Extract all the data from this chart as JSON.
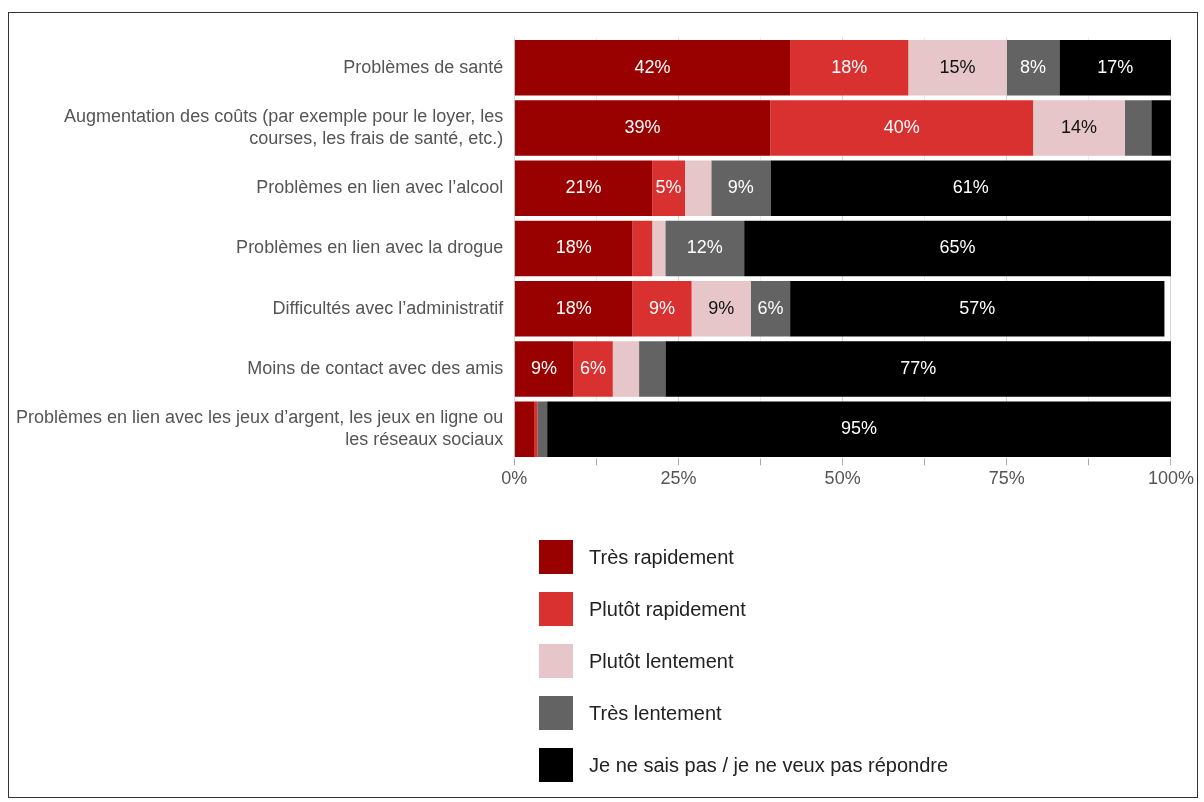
{
  "chart_data": {
    "type": "bar",
    "orientation": "horizontal",
    "stacked": true,
    "categories": [
      "Problèmes de santé",
      "Augmentation des coûts (par exemple pour le loyer, les courses, les frais de santé, etc.)",
      "Problèmes en lien avec l’alcool",
      "Problèmes en lien avec la drogue",
      "Difficultés avec l’administratif",
      "Moins de contact avec des amis",
      "Problèmes en lien avec les jeux d’argent, les jeux en ligne ou les réseaux sociaux"
    ],
    "series": [
      {
        "name": "Très rapidement",
        "color": "#990000",
        "values": [
          42,
          39,
          21,
          18,
          18,
          9,
          3
        ],
        "value_labels": [
          "42%",
          "39%",
          "21%",
          "18%",
          "18%",
          "9%",
          null
        ]
      },
      {
        "name": "Plutôt rapidement",
        "color": "#d93030",
        "values": [
          18,
          40,
          5,
          3,
          9,
          6,
          0.5
        ],
        "value_labels": [
          "18%",
          "40%",
          "5%",
          null,
          "9%",
          "6%",
          null
        ]
      },
      {
        "name": "Plutôt lentement",
        "color": "#e6c6c8",
        "values": [
          15,
          14,
          4,
          2,
          9,
          4,
          0
        ],
        "value_labels": [
          "15%",
          "14%",
          null,
          null,
          "9%",
          null,
          null
        ]
      },
      {
        "name": "Très lentement",
        "color": "#636363",
        "values": [
          8,
          4,
          9,
          12,
          6,
          4,
          1.5
        ],
        "value_labels": [
          "8%",
          null,
          "9%",
          "12%",
          "6%",
          null,
          null
        ]
      },
      {
        "name": "Je ne sais pas / je ne veux pas répondre",
        "color": "#000000",
        "values": [
          17,
          3,
          61,
          65,
          57,
          77,
          95
        ],
        "value_labels": [
          "17%",
          null,
          "61%",
          "65%",
          "57%",
          "77%",
          "95%"
        ]
      }
    ],
    "xlim": [
      0,
      100
    ],
    "xticks": [
      {
        "value": 0,
        "label": "0%"
      },
      {
        "value": 12.5,
        "label": null
      },
      {
        "value": 25,
        "label": "25%"
      },
      {
        "value": 37.5,
        "label": null
      },
      {
        "value": 50,
        "label": "50%"
      },
      {
        "value": 62.5,
        "label": null
      },
      {
        "value": 75,
        "label": "75%"
      },
      {
        "value": 87.5,
        "label": null
      },
      {
        "value": 100,
        "label": "100%"
      }
    ],
    "grid": "x",
    "legend": "bottom"
  }
}
